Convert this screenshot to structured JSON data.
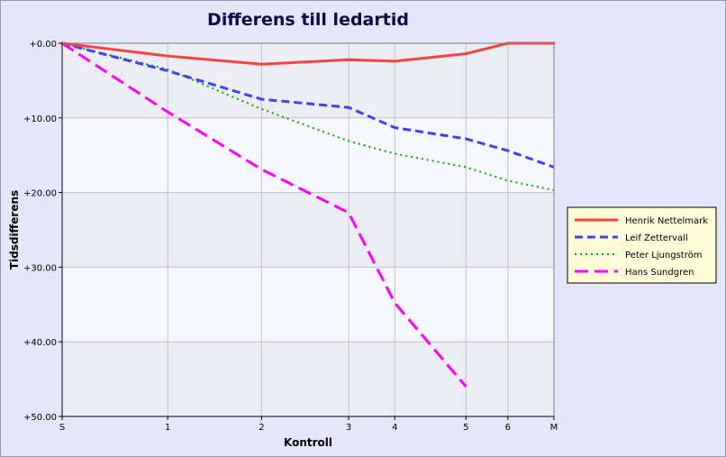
{
  "chart_data": {
    "type": "line",
    "title": "Differens till ledartid",
    "xlabel": "Kontroll",
    "ylabel": "Tidsdifferens",
    "x_ticks": [
      {
        "label": "S",
        "x": 0
      },
      {
        "label": "1",
        "x": 1
      },
      {
        "label": "2",
        "x": 2
      },
      {
        "label": "3",
        "x": 3
      },
      {
        "label": "4",
        "x": 4
      },
      {
        "label": "5",
        "x": 5
      },
      {
        "label": "6",
        "x": 6
      },
      {
        "label": "M",
        "x": 7
      }
    ],
    "x_positions": [
      0,
      1.26,
      2.38,
      3.42,
      3.97,
      4.82,
      5.32,
      5.87
    ],
    "y_ticks": [
      "+0.00",
      "+10.00",
      "+20.00",
      "+30.00",
      "+40.00",
      "+50.00"
    ],
    "y_tick_values": [
      0,
      10,
      20,
      30,
      40,
      50
    ],
    "ylim": [
      0,
      50
    ],
    "y_inverted": true,
    "grid": true,
    "legend_position": "right",
    "series": [
      {
        "name": "Henrik Nettelmark",
        "color": "#ff4040",
        "dash": "solid",
        "points": [
          [
            0,
            0
          ],
          [
            1,
            1.7
          ],
          [
            2,
            2.8
          ],
          [
            3,
            2.2
          ],
          [
            4,
            2.4
          ],
          [
            5,
            1.4
          ],
          [
            6,
            0
          ],
          [
            7,
            0
          ]
        ]
      },
      {
        "name": "Leif Zettervall",
        "color": "#4040ff",
        "dash": "dashed",
        "points": [
          [
            0,
            0
          ],
          [
            1,
            3.7
          ],
          [
            2,
            7.5
          ],
          [
            3,
            8.6
          ],
          [
            4,
            11.3
          ],
          [
            5,
            12.8
          ],
          [
            6,
            14.4
          ],
          [
            7,
            16.6
          ]
        ]
      },
      {
        "name": "Peter Ljungström",
        "color": "#00aa00",
        "dash": "dotted",
        "points": [
          [
            0,
            0
          ],
          [
            1,
            3.5
          ],
          [
            2,
            8.8
          ],
          [
            3,
            13.1
          ],
          [
            4,
            14.8
          ],
          [
            5,
            16.6
          ],
          [
            6,
            18.4
          ],
          [
            7,
            19.7
          ]
        ]
      },
      {
        "name": "Hans Sundgren",
        "color": "#ff00ff",
        "dash": "long-dash",
        "points": [
          [
            0,
            0
          ],
          [
            1,
            9.2
          ],
          [
            2,
            16.9
          ],
          [
            3,
            22.7
          ],
          [
            4,
            34.8
          ],
          [
            5,
            46
          ]
        ]
      }
    ]
  }
}
